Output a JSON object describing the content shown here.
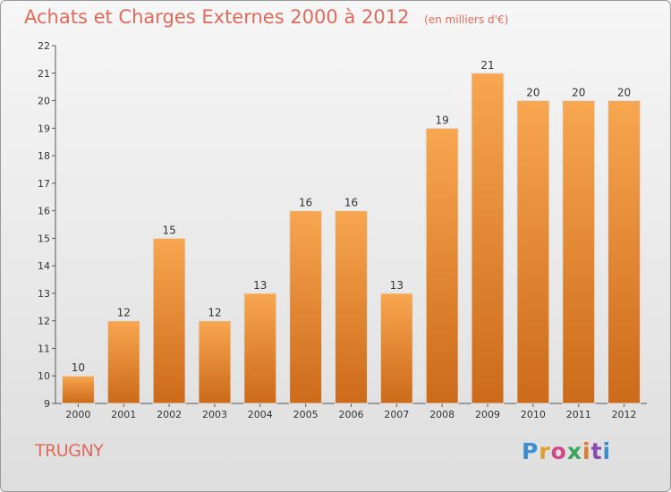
{
  "header": {
    "title": "Achats et Charges Externes 2000 à 2012",
    "subtitle": "(en milliers d'€)"
  },
  "commune": "TRUGNY",
  "logo_text": [
    "P",
    "r",
    "o",
    "x",
    "i",
    "t",
    "i"
  ],
  "colors": {
    "title": "#e06a5a",
    "bar_top": "#f8a650",
    "bar_bottom": "#cc6a1a"
  },
  "chart_data": {
    "type": "bar",
    "categories": [
      "2000",
      "2001",
      "2002",
      "2003",
      "2004",
      "2005",
      "2006",
      "2007",
      "2008",
      "2009",
      "2010",
      "2011",
      "2012"
    ],
    "values": [
      10,
      12,
      15,
      12,
      13,
      16,
      16,
      13,
      19,
      21,
      20,
      20,
      20
    ],
    "ylim": [
      9,
      22
    ],
    "yticks": [
      9,
      10,
      11,
      12,
      13,
      14,
      15,
      16,
      17,
      18,
      19,
      20,
      21,
      22
    ],
    "grid": false,
    "data_labels": true
  }
}
